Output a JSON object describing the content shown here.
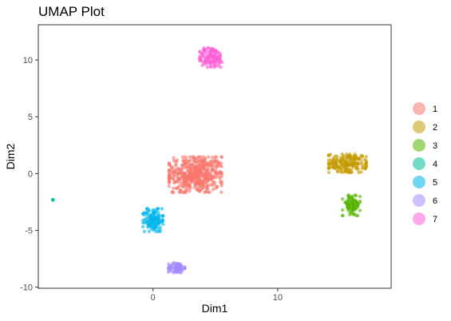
{
  "chart_data": {
    "type": "scatter",
    "title": "UMAP Plot",
    "xlabel": "Dim1",
    "ylabel": "Dim2",
    "xlim": [
      -9.2,
      19.1
    ],
    "ylim": [
      -10.1,
      13.1
    ],
    "x_ticks": [
      0,
      10
    ],
    "y_ticks": [
      -10,
      -5,
      0,
      5,
      10
    ],
    "grid": false,
    "legend_position": "right",
    "series": [
      {
        "name": "1",
        "color": "#F8766D",
        "center": [
          3.4,
          -0.1
        ],
        "spread": [
          2.1,
          1.55
        ],
        "n": 480
      },
      {
        "name": "2",
        "color": "#C49A00",
        "center": [
          15.6,
          0.9
        ],
        "spread": [
          1.5,
          0.8
        ],
        "n": 190
      },
      {
        "name": "3",
        "color": "#53B400",
        "center": [
          15.9,
          -2.8
        ],
        "spread": [
          0.7,
          0.9
        ],
        "n": 90
      },
      {
        "name": "4",
        "color": "#00C094",
        "center": [
          -8.0,
          -2.3
        ],
        "spread": [
          0.05,
          0.05
        ],
        "n": 4
      },
      {
        "name": "5",
        "color": "#00B6EB",
        "center": [
          0.0,
          -4.1
        ],
        "spread": [
          0.8,
          1.0
        ],
        "n": 130
      },
      {
        "name": "6",
        "color": "#A58AFF",
        "center": [
          1.9,
          -8.3
        ],
        "spread": [
          0.65,
          0.45
        ],
        "n": 80
      },
      {
        "name": "7",
        "color": "#FB61D7",
        "center": [
          4.7,
          10.2
        ],
        "spread": [
          0.95,
          0.85
        ],
        "n": 140
      }
    ]
  }
}
